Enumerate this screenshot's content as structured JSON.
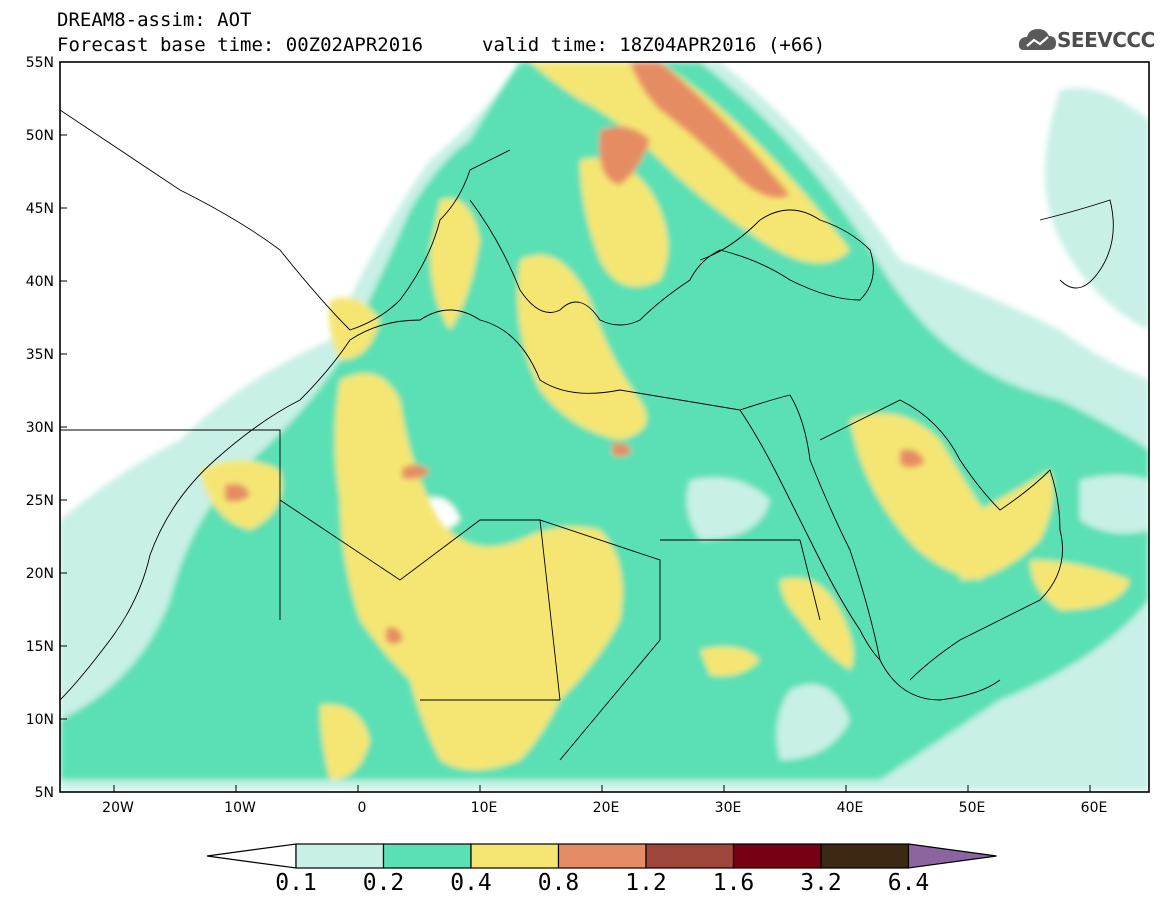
{
  "header": {
    "title": "DREAM8-assim: AOT",
    "base_time": "Forecast base time: 00Z02APR2016",
    "valid_time": "valid time: 18Z04APR2016 (+66)",
    "logo_text": "SEEVCCC"
  },
  "map": {
    "variable": "AOT",
    "lat_labels": [
      "55N",
      "50N",
      "45N",
      "40N",
      "35N",
      "30N",
      "25N",
      "20N",
      "15N",
      "10N",
      "5N"
    ],
    "lon_labels": [
      "20W",
      "10W",
      "0",
      "10E",
      "20E",
      "30E",
      "40E",
      "50E",
      "60E"
    ]
  },
  "colorbar": {
    "levels": [
      "0.1",
      "0.2",
      "0.4",
      "0.8",
      "1.2",
      "1.6",
      "3.2",
      "6.4"
    ],
    "colors": [
      "#ffffff",
      "#c8f0e6",
      "#5ae0b4",
      "#f5e673",
      "#e68c64",
      "#a0463c",
      "#780014",
      "#3c2814",
      "#8c64a0"
    ]
  }
}
